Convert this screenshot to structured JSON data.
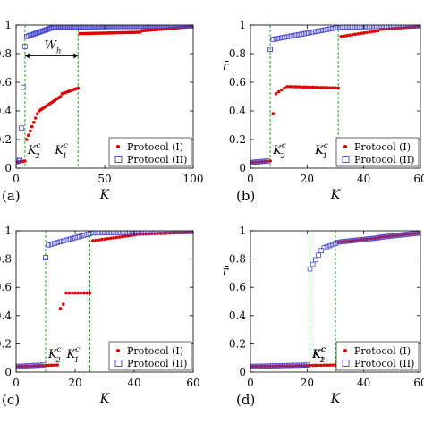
{
  "chart_data": [
    {
      "type": "scatter",
      "panel_label": "(a)",
      "xlabel": "K",
      "ylabel": "",
      "xlim": [
        0,
        100
      ],
      "ylim": [
        0,
        1
      ],
      "xticks": [
        "0",
        "50",
        "100"
      ],
      "yticks": [
        "0",
        "0.2",
        "0.4",
        "0.6",
        "0.8",
        "1"
      ],
      "vlines": [
        {
          "x": 5,
          "label": "K",
          "sup": "c",
          "sub": "2"
        },
        {
          "x": 35,
          "label": "K",
          "sup": "c",
          "sub": "1"
        }
      ],
      "annotation": {
        "label": "W",
        "sub": "h",
        "x_from": 5,
        "x_to": 35,
        "y": 0.91
      },
      "series": [
        {
          "name": "Protocol (I)",
          "marker": "dot",
          "color": "#dd0000",
          "segments": [
            {
              "x0": 0,
              "x1": 5,
              "y0": 0.04,
              "y1": 0.05,
              "step": 1
            },
            {
              "x0": 6,
              "x1": 12,
              "y0": 0.2,
              "y1": 0.38,
              "step": 1
            },
            {
              "x0": 13,
              "x1": 25,
              "y0": 0.4,
              "y1": 0.5,
              "step": 1
            },
            {
              "x0": 26,
              "x1": 35,
              "y0": 0.52,
              "y1": 0.56,
              "step": 1
            },
            {
              "x0": 36,
              "x1": 70,
              "y0": 0.94,
              "y1": 0.95,
              "step": 1
            },
            {
              "x0": 71,
              "x1": 100,
              "y0": 0.96,
              "y1": 0.99,
              "step": 1
            }
          ]
        },
        {
          "name": "Protocol (II)",
          "marker": "square",
          "color": "#4444cc",
          "segments": [
            {
              "x0": 0,
              "x1": 2,
              "y0": 0.04,
              "y1": 0.06,
              "step": 1
            },
            {
              "x0": 3,
              "x1": 5,
              "y0": 0.28,
              "y1": 0.85,
              "step": 1
            },
            {
              "x0": 6,
              "x1": 20,
              "y0": 0.92,
              "y1": 0.98,
              "step": 1
            },
            {
              "x0": 21,
              "x1": 100,
              "y0": 0.985,
              "y1": 0.995,
              "step": 1
            }
          ]
        }
      ],
      "legend": "bottom-right"
    },
    {
      "type": "scatter",
      "panel_label": "(b)",
      "xlabel": "K",
      "ylabel": "r̄",
      "xlim": [
        0,
        60
      ],
      "ylim": [
        0,
        1
      ],
      "xticks": [
        "0",
        "20",
        "40",
        "60"
      ],
      "yticks": [
        "0",
        "0.2",
        "0.4",
        "0.6",
        "0.8",
        "1"
      ],
      "vlines": [
        {
          "x": 7,
          "label": "K",
          "sup": "c",
          "sub": "2"
        },
        {
          "x": 31,
          "label": "K",
          "sup": "c",
          "sub": "1"
        }
      ],
      "series": [
        {
          "name": "Protocol (I)",
          "marker": "dot",
          "color": "#dd0000",
          "segments": [
            {
              "x0": 0,
              "x1": 7,
              "y0": 0.04,
              "y1": 0.05,
              "step": 1
            },
            {
              "x0": 8,
              "x1": 8,
              "y0": 0.38,
              "y1": 0.38,
              "step": 1
            },
            {
              "x0": 9,
              "x1": 12,
              "y0": 0.52,
              "y1": 0.56,
              "step": 1
            },
            {
              "x0": 13,
              "x1": 31,
              "y0": 0.57,
              "y1": 0.56,
              "step": 1
            },
            {
              "x0": 32,
              "x1": 45,
              "y0": 0.92,
              "y1": 0.96,
              "step": 1
            },
            {
              "x0": 46,
              "x1": 60,
              "y0": 0.97,
              "y1": 0.99,
              "step": 1
            }
          ]
        },
        {
          "name": "Protocol (II)",
          "marker": "square",
          "color": "#4444cc",
          "segments": [
            {
              "x0": 0,
              "x1": 6,
              "y0": 0.04,
              "y1": 0.05,
              "step": 1
            },
            {
              "x0": 7,
              "x1": 7,
              "y0": 0.83,
              "y1": 0.83,
              "step": 1
            },
            {
              "x0": 8,
              "x1": 30,
              "y0": 0.9,
              "y1": 0.98,
              "step": 1
            },
            {
              "x0": 31,
              "x1": 60,
              "y0": 0.985,
              "y1": 0.995,
              "step": 1
            }
          ]
        }
      ],
      "legend": "bottom-right"
    },
    {
      "type": "scatter",
      "panel_label": "(c)",
      "xlabel": "K",
      "ylabel": "",
      "xlim": [
        0,
        60
      ],
      "ylim": [
        0,
        1
      ],
      "xticks": [
        "0",
        "20",
        "40",
        "60"
      ],
      "yticks": [
        "0",
        "0.2",
        "0.4",
        "0.6",
        "0.8",
        "1"
      ],
      "vlines": [
        {
          "x": 10,
          "label": "K",
          "sup": "c",
          "sub": "2"
        },
        {
          "x": 25,
          "label": "K",
          "sup": "c",
          "sub": "1"
        }
      ],
      "series": [
        {
          "name": "Protocol (I)",
          "marker": "dot",
          "color": "#dd0000",
          "segments": [
            {
              "x0": 0,
              "x1": 14,
              "y0": 0.04,
              "y1": 0.05,
              "step": 1
            },
            {
              "x0": 15,
              "x1": 16,
              "y0": 0.45,
              "y1": 0.48,
              "step": 1
            },
            {
              "x0": 17,
              "x1": 25,
              "y0": 0.56,
              "y1": 0.56,
              "step": 1
            },
            {
              "x0": 26,
              "x1": 40,
              "y0": 0.93,
              "y1": 0.97,
              "step": 1
            },
            {
              "x0": 41,
              "x1": 60,
              "y0": 0.975,
              "y1": 0.99,
              "step": 1
            }
          ]
        },
        {
          "name": "Protocol (II)",
          "marker": "square",
          "color": "#4444cc",
          "segments": [
            {
              "x0": 0,
              "x1": 9,
              "y0": 0.04,
              "y1": 0.05,
              "step": 1
            },
            {
              "x0": 10,
              "x1": 10,
              "y0": 0.81,
              "y1": 0.81,
              "step": 1
            },
            {
              "x0": 11,
              "x1": 25,
              "y0": 0.9,
              "y1": 0.98,
              "step": 1
            },
            {
              "x0": 26,
              "x1": 60,
              "y0": 0.985,
              "y1": 0.995,
              "step": 1
            }
          ]
        }
      ],
      "legend": "bottom-right"
    },
    {
      "type": "scatter",
      "panel_label": "(d)",
      "xlabel": "K",
      "ylabel": "r̄",
      "xlim": [
        0,
        60
      ],
      "ylim": [
        0,
        1
      ],
      "xticks": [
        "0",
        "20",
        "40",
        "60"
      ],
      "yticks": [
        "0",
        "0.2",
        "0.4",
        "0.6",
        "0.8",
        "1"
      ],
      "vlines": [
        {
          "x": 21,
          "label": "K",
          "sup": "c",
          "sub": "2"
        },
        {
          "x": 30,
          "label": "K",
          "sup": "c",
          "sub": "1"
        }
      ],
      "series": [
        {
          "name": "Protocol (I)",
          "marker": "dot",
          "color": "#dd0000",
          "segments": [
            {
              "x0": 0,
              "x1": 30,
              "y0": 0.04,
              "y1": 0.05,
              "step": 1
            },
            {
              "x0": 31,
              "x1": 45,
              "y0": 0.92,
              "y1": 0.95,
              "step": 1
            },
            {
              "x0": 46,
              "x1": 60,
              "y0": 0.955,
              "y1": 0.985,
              "step": 1
            }
          ]
        },
        {
          "name": "Protocol (II)",
          "marker": "square",
          "color": "#4444cc",
          "segments": [
            {
              "x0": 0,
              "x1": 20,
              "y0": 0.04,
              "y1": 0.05,
              "step": 1
            },
            {
              "x0": 21,
              "x1": 25,
              "y0": 0.73,
              "y1": 0.86,
              "step": 1
            },
            {
              "x0": 26,
              "x1": 30,
              "y0": 0.88,
              "y1": 0.91,
              "step": 1
            },
            {
              "x0": 31,
              "x1": 45,
              "y0": 0.92,
              "y1": 0.95,
              "step": 1
            },
            {
              "x0": 46,
              "x1": 60,
              "y0": 0.955,
              "y1": 0.985,
              "step": 1
            }
          ]
        }
      ],
      "legend": "bottom-right"
    }
  ]
}
